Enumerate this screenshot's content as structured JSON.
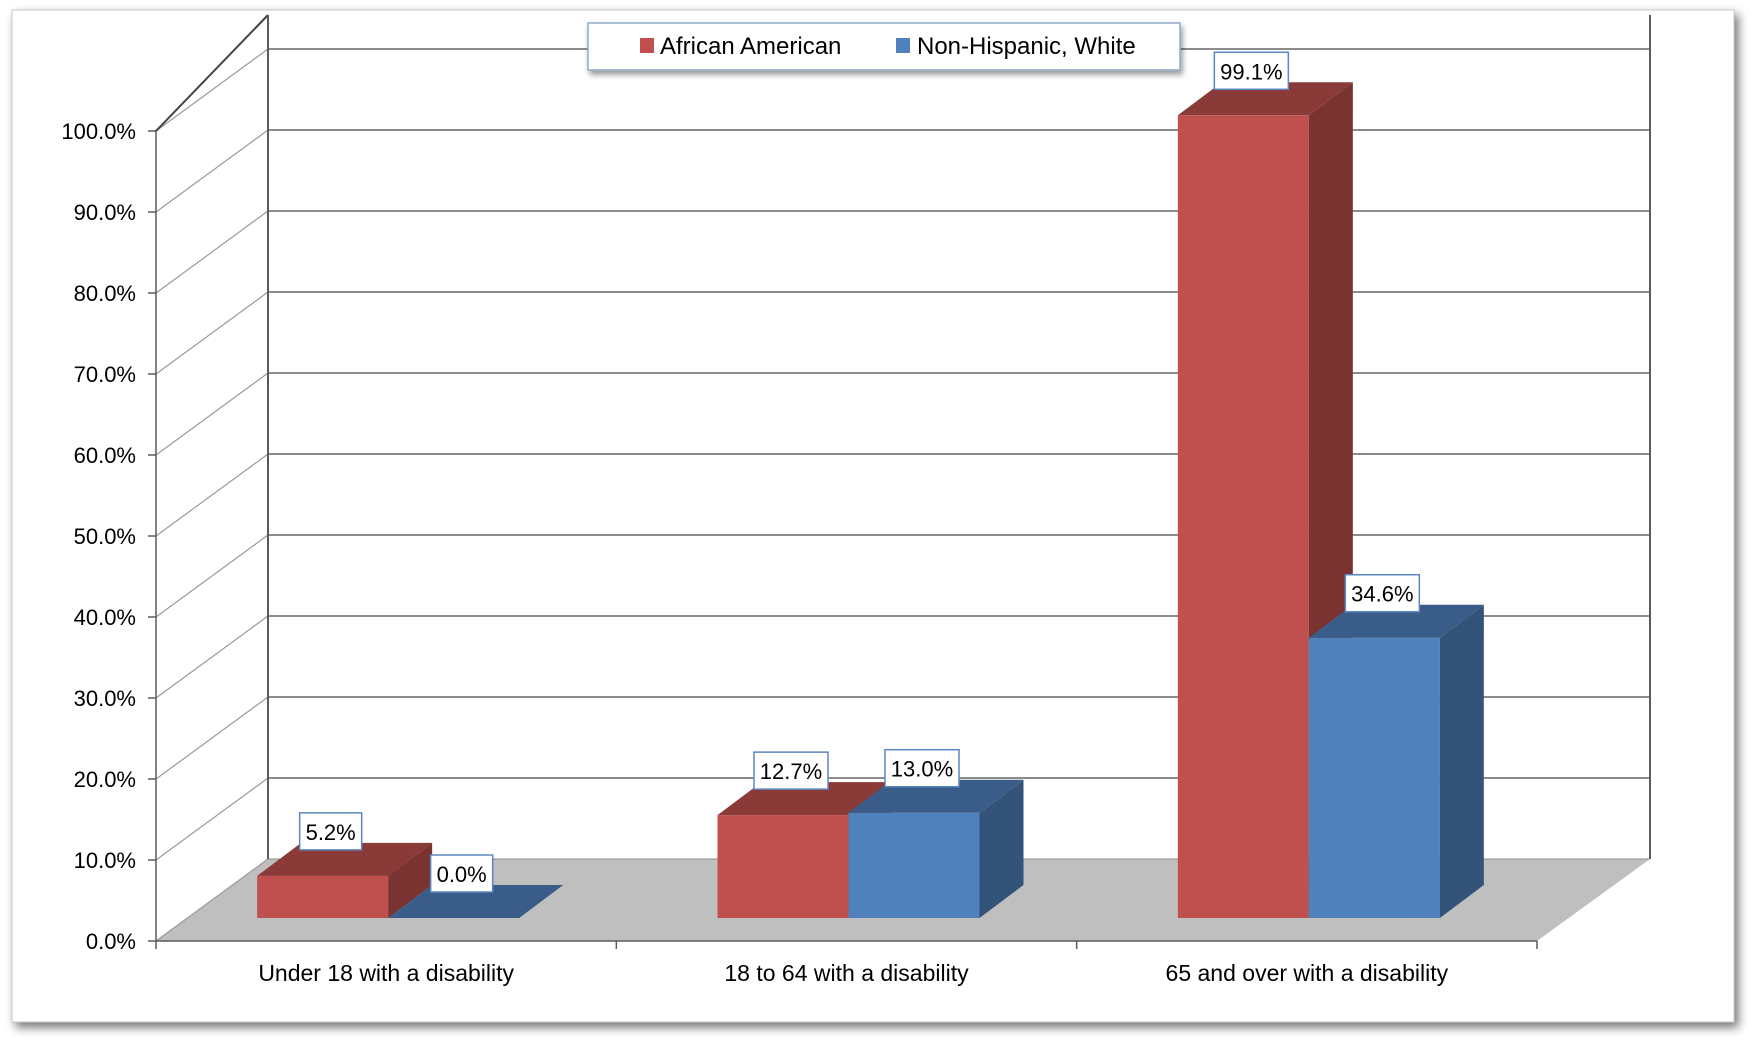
{
  "chart_data": {
    "type": "bar",
    "title": "",
    "xlabel": "",
    "ylabel": "",
    "categories": [
      "Under 18 with a disability",
      "18 to 64 with a disability",
      "65 and over with a disability"
    ],
    "series": [
      {
        "name": "African American",
        "values": [
          5.2,
          12.7,
          99.1
        ],
        "labels": [
          "5.2%",
          "12.7%",
          "99.1%"
        ]
      },
      {
        "name": "Non-Hispanic, White",
        "values": [
          0.0,
          13.0,
          34.6
        ],
        "labels": [
          "0.0%",
          "13.0%",
          "34.6%"
        ]
      }
    ],
    "ylim": [
      0,
      100
    ],
    "yticks": [
      "0.0%",
      "10.0%",
      "20.0%",
      "30.0%",
      "40.0%",
      "50.0%",
      "60.0%",
      "70.0%",
      "80.0%",
      "90.0%",
      "100.0%"
    ],
    "grid": true,
    "legend": "top-center",
    "style": "3d-clustered-column",
    "colors": {
      "series": [
        "#C0504D",
        "#4F81BD"
      ],
      "floor": "#BFBFBF",
      "gridline": "#8C8C8C",
      "frame": "#5A5A5A"
    }
  }
}
